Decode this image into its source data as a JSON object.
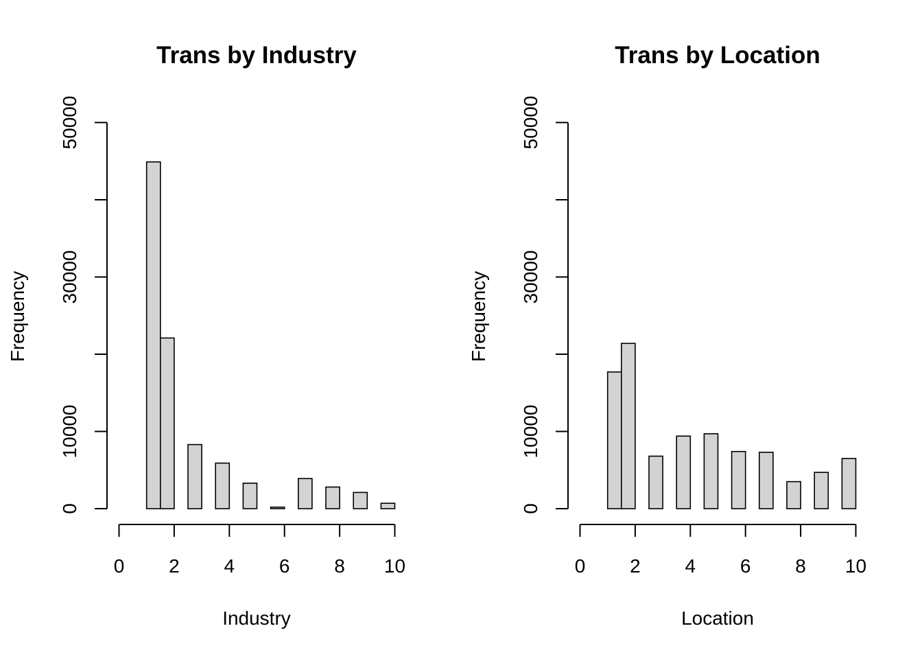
{
  "chart_data": [
    {
      "type": "bar",
      "title": "Trans by Industry",
      "xlabel": "Industry",
      "ylabel": "Frequency",
      "xlim": [
        0,
        10
      ],
      "ylim": [
        0,
        50000
      ],
      "x_ticks": [
        "0",
        "2",
        "4",
        "6",
        "8",
        "10"
      ],
      "y_ticks": [
        "0",
        "10000",
        "30000",
        "50000"
      ],
      "grid": false,
      "bin_edges": [
        1.0,
        1.5,
        2.0,
        2.5,
        3.0,
        3.5,
        4.0,
        4.5,
        5.0,
        5.5,
        6.0,
        6.5,
        7.0,
        7.5,
        8.0,
        8.5,
        9.0,
        9.5,
        10.0
      ],
      "values": [
        44900,
        22100,
        0,
        8300,
        0,
        5900,
        0,
        3300,
        0,
        200,
        0,
        3900,
        0,
        2800,
        0,
        2100,
        0,
        700
      ],
      "bar_color": "#d3d3d3",
      "edge_color": "#000000"
    },
    {
      "type": "bar",
      "title": "Trans by Location",
      "xlabel": "Location",
      "ylabel": "Frequency",
      "xlim": [
        0,
        10
      ],
      "ylim": [
        0,
        50000
      ],
      "x_ticks": [
        "0",
        "2",
        "4",
        "6",
        "8",
        "10"
      ],
      "y_ticks": [
        "0",
        "10000",
        "30000",
        "50000"
      ],
      "grid": false,
      "bin_edges": [
        1.0,
        1.5,
        2.0,
        2.5,
        3.0,
        3.5,
        4.0,
        4.5,
        5.0,
        5.5,
        6.0,
        6.5,
        7.0,
        7.5,
        8.0,
        8.5,
        9.0,
        9.5,
        10.0
      ],
      "values": [
        17700,
        21400,
        0,
        6800,
        0,
        9400,
        0,
        9700,
        0,
        7400,
        0,
        7300,
        0,
        3500,
        0,
        4700,
        0,
        6500
      ],
      "bar_color": "#d3d3d3",
      "edge_color": "#000000"
    }
  ]
}
